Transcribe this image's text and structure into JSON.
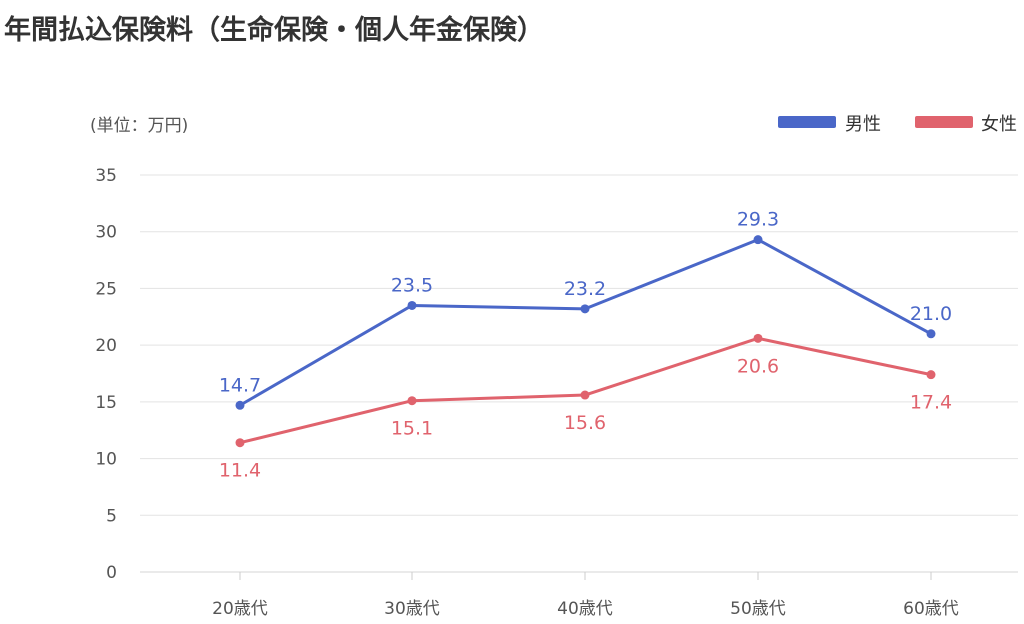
{
  "chart_data": {
    "type": "line",
    "title": "年間払込保険料（生命保険・個人年金保険）",
    "unit_label": "(単位：万円)",
    "categories": [
      "20歳代",
      "30歳代",
      "40歳代",
      "50歳代",
      "60歳代"
    ],
    "series": [
      {
        "name": "男性",
        "color": "#4a67c8",
        "values": [
          14.7,
          23.5,
          23.2,
          29.3,
          21.0
        ],
        "label_position": "above"
      },
      {
        "name": "女性",
        "color": "#e0636d",
        "values": [
          11.4,
          15.1,
          15.6,
          20.6,
          17.4
        ],
        "label_position": "below"
      }
    ],
    "ylim": [
      0,
      35
    ],
    "y_ticks": [
      0,
      5,
      10,
      15,
      20,
      25,
      30,
      35
    ],
    "grid": true,
    "legend_position": "top-right"
  }
}
